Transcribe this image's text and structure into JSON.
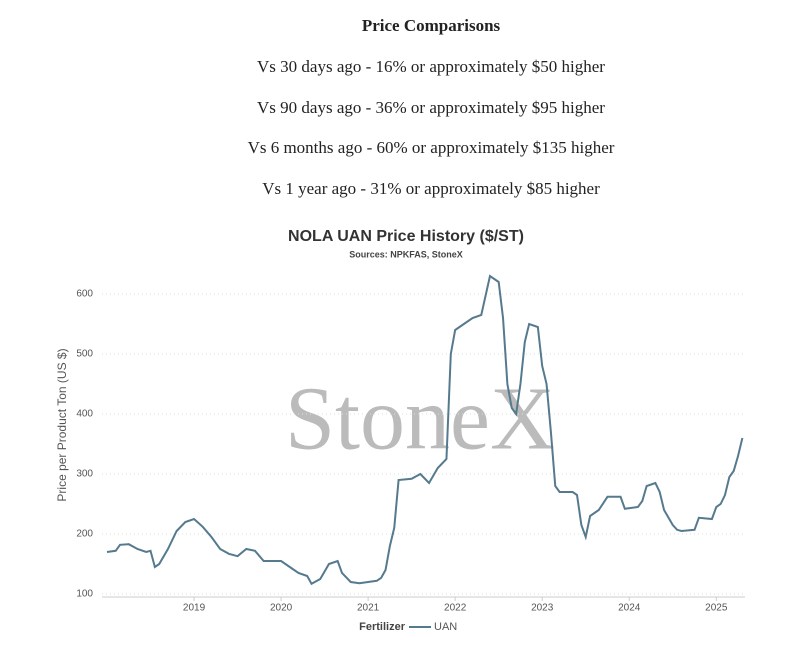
{
  "heading": "Price Comparisons",
  "comparisons": [
    "Vs 30 days ago - 16% or approximately $50 higher",
    "Vs 90 days ago - 36% or approximately $95 higher",
    "Vs 6 months ago - 60% or approximately $135 higher",
    "Vs 1 year ago - 31% or approximately $85 higher"
  ],
  "chart_data": {
    "type": "line",
    "title": "NOLA UAN Price History ($/ST)",
    "subtitle": "Sources: NPKFAS, StoneX",
    "watermark": "StoneX",
    "y_label": "Price per Product Ton (US $)",
    "legend_title": "Fertilizer",
    "x": [
      2018.0,
      2018.1,
      2018.15,
      2018.25,
      2018.35,
      2018.45,
      2018.5,
      2018.55,
      2018.6,
      2018.7,
      2018.8,
      2018.9,
      2019.0,
      2019.1,
      2019.2,
      2019.3,
      2019.4,
      2019.5,
      2019.6,
      2019.7,
      2019.8,
      2019.9,
      2020.0,
      2020.1,
      2020.2,
      2020.3,
      2020.35,
      2020.45,
      2020.55,
      2020.65,
      2020.7,
      2020.8,
      2020.9,
      2021.0,
      2021.1,
      2021.15,
      2021.2,
      2021.25,
      2021.3,
      2021.35,
      2021.5,
      2021.6,
      2021.7,
      2021.8,
      2021.9,
      2021.95,
      2022.0,
      2022.1,
      2022.2,
      2022.3,
      2022.4,
      2022.5,
      2022.55,
      2022.6,
      2022.65,
      2022.7,
      2022.75,
      2022.8,
      2022.85,
      2022.95,
      2023.0,
      2023.05,
      2023.1,
      2023.15,
      2023.2,
      2023.35,
      2023.4,
      2023.45,
      2023.5,
      2023.55,
      2023.65,
      2023.75,
      2023.9,
      2023.95,
      2024.1,
      2024.15,
      2024.2,
      2024.3,
      2024.35,
      2024.4,
      2024.5,
      2024.55,
      2024.6,
      2024.75,
      2024.8,
      2024.95,
      2025.0,
      2025.05,
      2025.1,
      2025.15,
      2025.2,
      2025.25,
      2025.3
    ],
    "series": [
      {
        "name": "UAN",
        "color": "#557a8e",
        "values": [
          170,
          172,
          182,
          183,
          175,
          170,
          172,
          145,
          150,
          175,
          205,
          220,
          225,
          212,
          195,
          175,
          167,
          163,
          175,
          172,
          155,
          155,
          155,
          145,
          135,
          130,
          117,
          125,
          150,
          155,
          135,
          120,
          118,
          120,
          122,
          127,
          140,
          180,
          210,
          290,
          292,
          300,
          285,
          310,
          325,
          500,
          540,
          550,
          560,
          565,
          630,
          620,
          560,
          450,
          410,
          400,
          450,
          520,
          550,
          545,
          480,
          450,
          370,
          280,
          270,
          270,
          265,
          215,
          195,
          230,
          240,
          262,
          262,
          242,
          245,
          255,
          280,
          285,
          270,
          240,
          215,
          207,
          205,
          207,
          227,
          225,
          245,
          250,
          265,
          295,
          305,
          330,
          360
        ]
      }
    ],
    "xlim": [
      2018.0,
      2025.33
    ],
    "xticks": [
      2019,
      2020,
      2021,
      2022,
      2023,
      2024,
      2025
    ],
    "ylim": [
      95,
      640
    ],
    "yticks": [
      100,
      200,
      300,
      400,
      500,
      600
    ],
    "grid": true
  }
}
